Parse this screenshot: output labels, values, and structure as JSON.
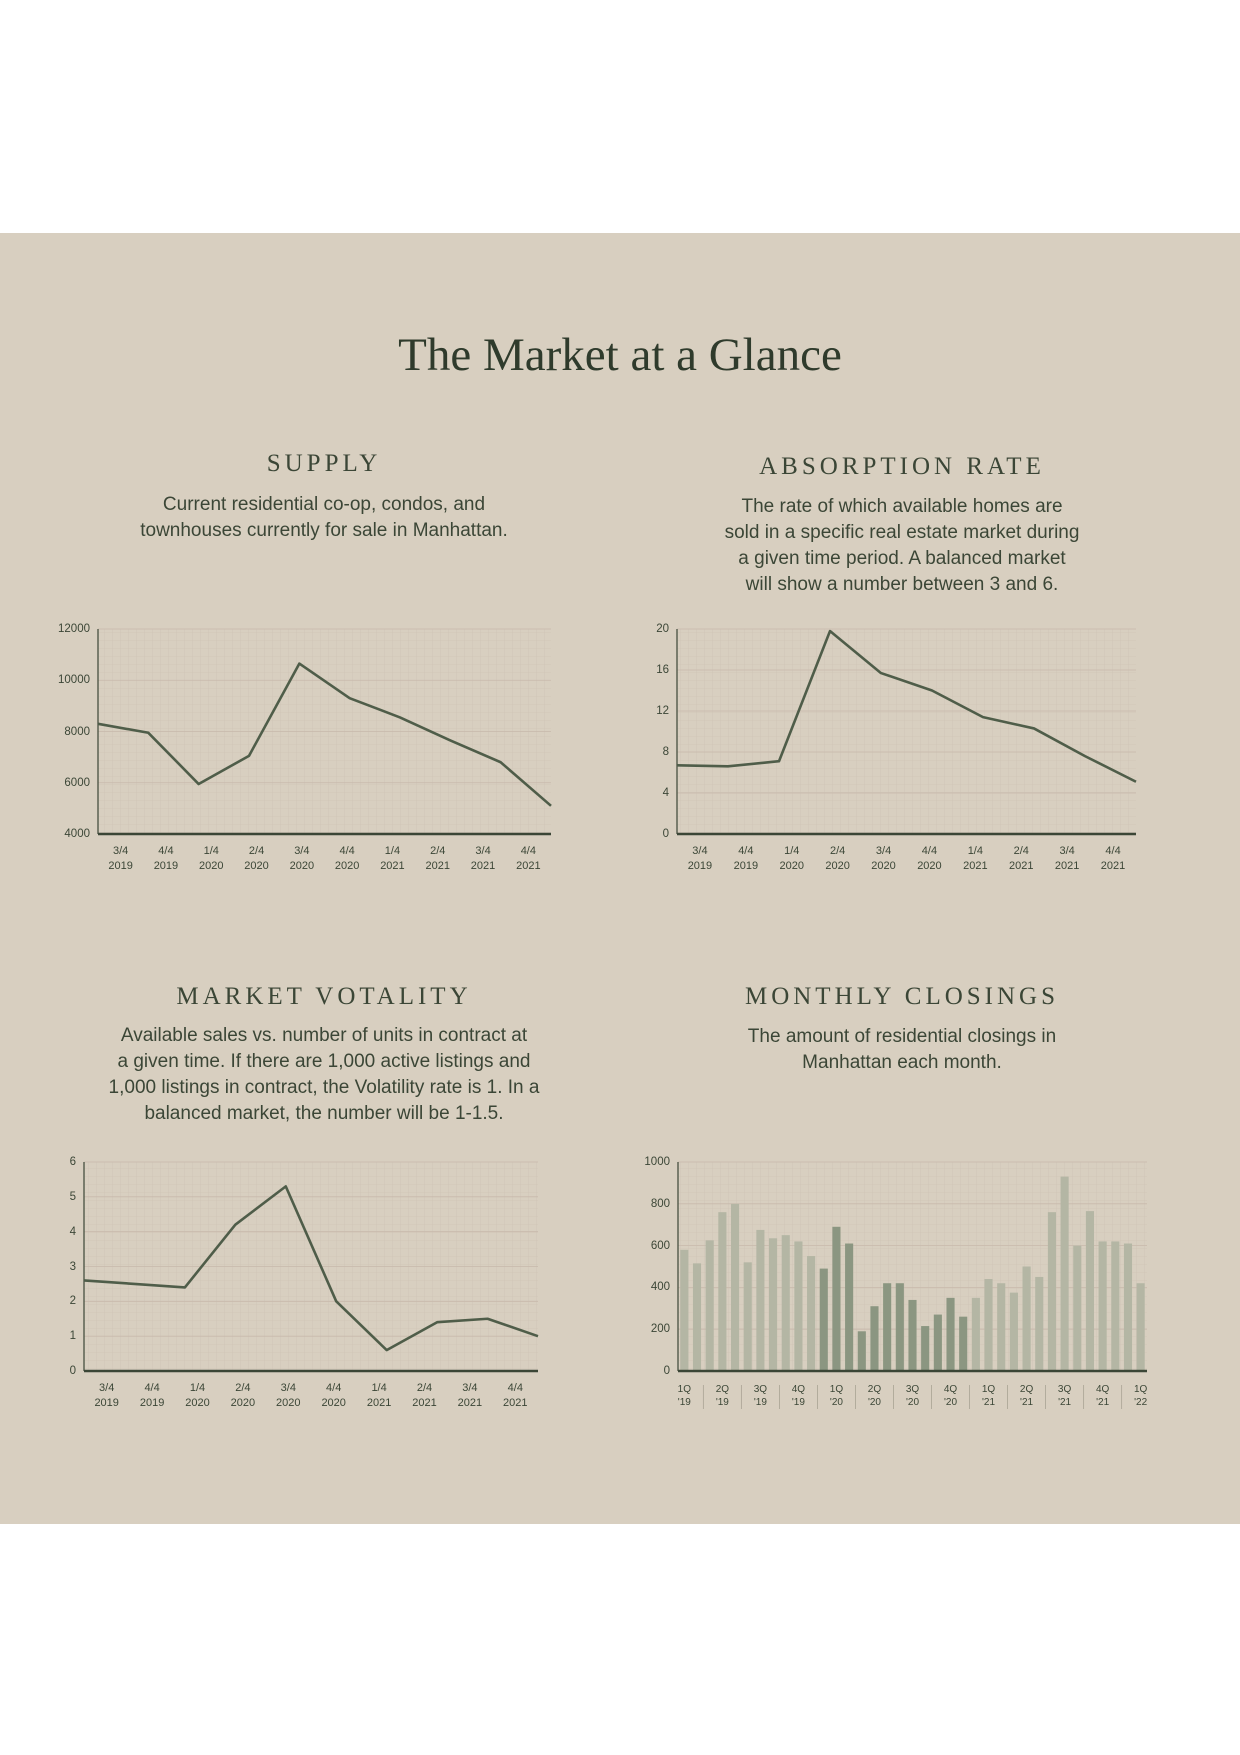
{
  "title": "The Market at a Glance",
  "chart_data": [
    {
      "type": "line",
      "title": "SUPPLY",
      "description": [
        "Current residential co-op, condos, and",
        "townhouses currently for sale in Manhattan."
      ],
      "categories": [
        "3/4 2019",
        "4/4 2019",
        "1/4 2020",
        "2/4 2020",
        "3/4 2020",
        "4/4 2020",
        "1/4 2021",
        "2/4 2021",
        "3/4 2021",
        "4/4 2021"
      ],
      "values": [
        8300,
        7950,
        5950,
        7050,
        10650,
        9300,
        8550,
        7650,
        6800,
        5100
      ],
      "color": "#4f5d49",
      "ylim": [
        4000,
        12000
      ],
      "yticks": [
        4000,
        6000,
        8000,
        10000,
        12000
      ],
      "grid": true
    },
    {
      "type": "line",
      "title": "ABSORPTION RATE",
      "description": [
        "The rate of which available homes are",
        "sold in a specific real estate market during",
        "a given time period. A balanced market",
        "will show a number between 3 and 6."
      ],
      "categories": [
        "3/4 2019",
        "4/4 2019",
        "1/4 2020",
        "2/4 2020",
        "3/4 2020",
        "4/4 2020",
        "1/4 2021",
        "2/4 2021",
        "3/4 2021",
        "4/4 2021"
      ],
      "values": [
        6.7,
        6.6,
        7.1,
        19.8,
        15.7,
        14.0,
        11.4,
        10.3,
        7.6,
        5.1
      ],
      "color": "#4f5d49",
      "ylim": [
        0,
        20
      ],
      "yticks": [
        0,
        4,
        8,
        12,
        16,
        20
      ],
      "grid": true
    },
    {
      "type": "line",
      "title": "MARKET VOTALITY",
      "description": [
        "Available sales vs. number of units in contract at",
        "a given time. If there are 1,000 active listings and",
        "1,000 listings in contract, the Volatility rate is 1. In a",
        "balanced market, the number will be 1-1.5."
      ],
      "categories": [
        "3/4 2019",
        "4/4 2019",
        "1/4 2020",
        "2/4 2020",
        "3/4 2020",
        "4/4 2020",
        "1/4 2021",
        "2/4 2021",
        "3/4 2021",
        "4/4 2021"
      ],
      "values": [
        2.6,
        2.5,
        2.4,
        4.2,
        5.3,
        2.0,
        0.6,
        1.4,
        1.5,
        1.0
      ],
      "color": "#4f5d49",
      "ylim": [
        0,
        6
      ],
      "yticks": [
        0,
        1,
        2,
        3,
        4,
        5,
        6
      ],
      "grid": true
    },
    {
      "type": "bar",
      "title": "MONTHLY CLOSINGS",
      "description": [
        "The amount of residential closings in",
        "Manhattan each month."
      ],
      "categories": [
        "1Q '19",
        null,
        null,
        "2Q '19",
        null,
        null,
        "3Q '19",
        null,
        null,
        "4Q '19",
        null,
        null,
        "1Q '20",
        null,
        null,
        "2Q '20",
        null,
        null,
        "3Q '20",
        null,
        null,
        "4Q '20",
        null,
        null,
        "1Q '21",
        null,
        null,
        "2Q '21",
        null,
        null,
        "3Q '21",
        null,
        null,
        "4Q '21",
        null,
        null,
        "1Q '22"
      ],
      "values": [
        580,
        515,
        625,
        760,
        800,
        520,
        675,
        635,
        650,
        620,
        550,
        490,
        690,
        610,
        190,
        310,
        420,
        420,
        340,
        215,
        270,
        350,
        260,
        350,
        440,
        420,
        375,
        500,
        450,
        760,
        930,
        600,
        765,
        620,
        620,
        610,
        420
      ],
      "colors": [
        "#b4b6a4",
        "#b4b6a4",
        "#b4b6a4",
        "#b4b6a4",
        "#b4b6a4",
        "#b4b6a4",
        "#b4b6a4",
        "#b4b6a4",
        "#b4b6a4",
        "#b4b6a4",
        "#b4b6a4",
        "#8b9681",
        "#8b9681",
        "#8b9681",
        "#8b9681",
        "#8b9681",
        "#8b9681",
        "#8b9681",
        "#8b9681",
        "#8b9681",
        "#8b9681",
        "#8b9681",
        "#8b9681",
        "#b4b6a4",
        "#b4b6a4",
        "#b4b6a4",
        "#b4b6a4",
        "#b4b6a4",
        "#b4b6a4",
        "#b4b6a4",
        "#b4b6a4",
        "#b4b6a4",
        "#b4b6a4",
        "#b4b6a4",
        "#b4b6a4",
        "#b4b6a4",
        "#b4b6a4"
      ],
      "ylim": [
        0,
        1000
      ],
      "yticks": [
        0,
        200,
        400,
        600,
        800,
        1000
      ],
      "grid": true
    }
  ]
}
